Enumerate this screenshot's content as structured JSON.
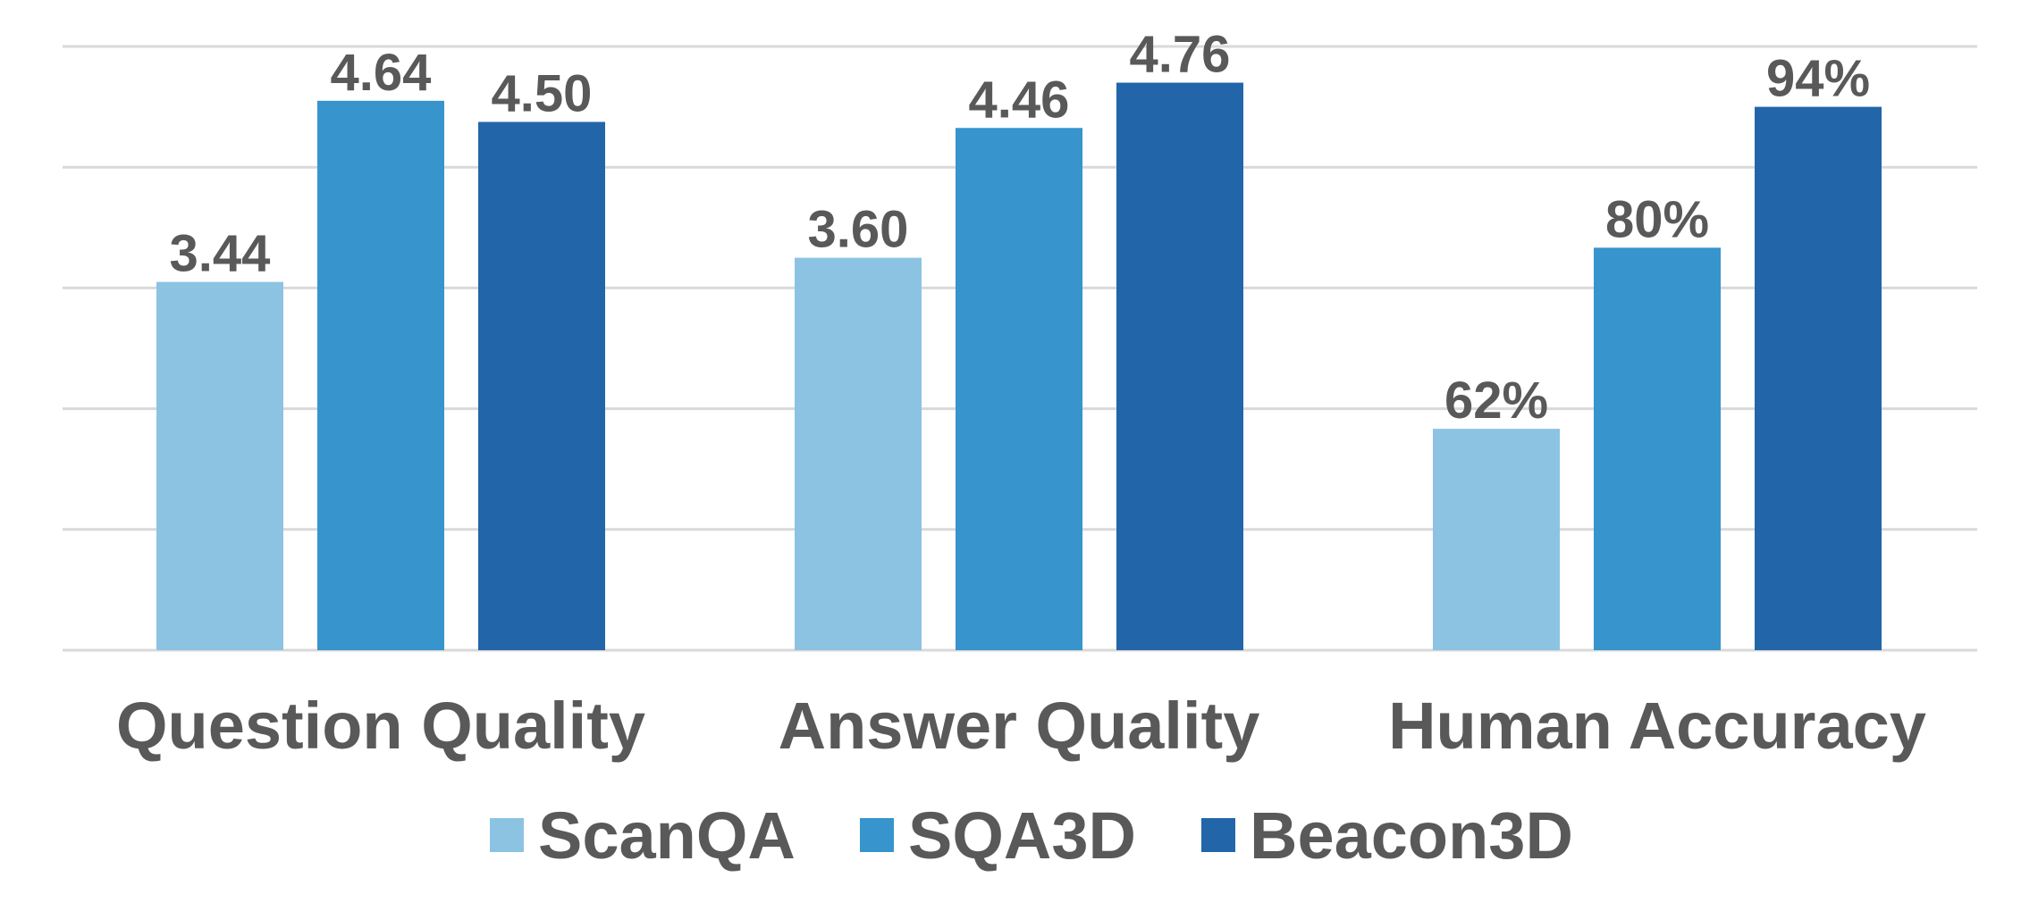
{
  "chart_data": {
    "type": "bar",
    "categories": [
      "Question Quality",
      "Answer Quality",
      "Human Accuracy"
    ],
    "series": [
      {
        "name": "ScanQA",
        "color": "#8cc3e3",
        "values": [
          3.44,
          3.6,
          62
        ],
        "labels": [
          "3.44",
          "3.60",
          "62%"
        ]
      },
      {
        "name": "SQA3D",
        "color": "#3794cc",
        "values": [
          4.64,
          4.46,
          80
        ],
        "labels": [
          "4.64",
          "4.46",
          "80%"
        ]
      },
      {
        "name": "Beacon3D",
        "color": "#2266a9",
        "values": [
          4.5,
          4.76,
          94
        ],
        "labels": [
          "4.50",
          "4.76",
          "94%"
        ]
      }
    ],
    "grid": true,
    "gridline_count": 6,
    "legend_position": "bottom",
    "title": "",
    "xlabel": "",
    "ylabel": ""
  }
}
